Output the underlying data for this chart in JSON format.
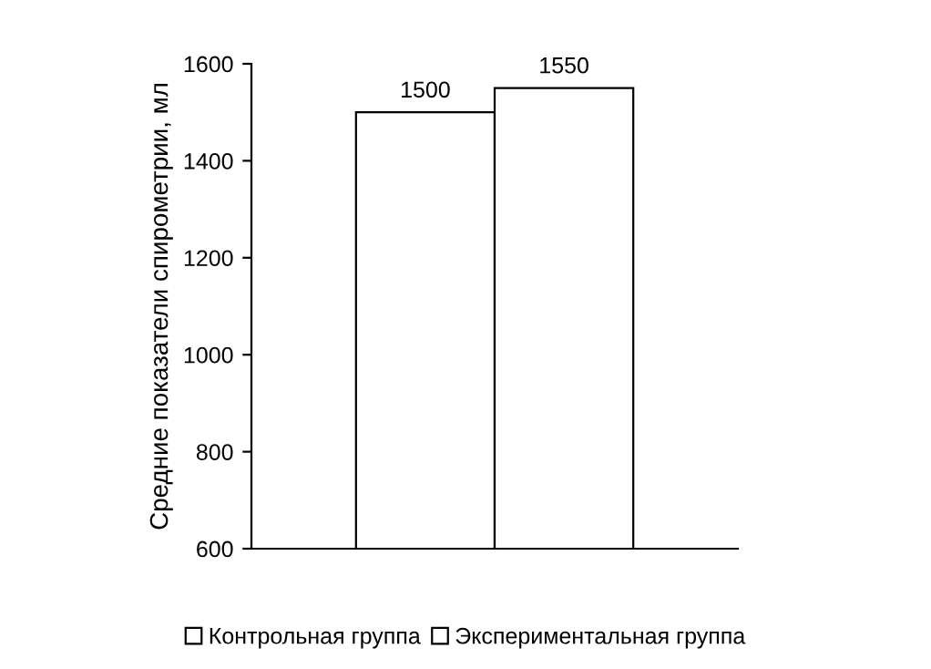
{
  "chart_data": {
    "type": "bar",
    "ylabel": "Средние показатели спирометрии, мл",
    "categories": [
      null
    ],
    "series": [
      {
        "name": "Контрольная группа",
        "color": "#ffffff",
        "values": [
          1500
        ]
      },
      {
        "name": "Экспериментальная группа",
        "color": "#ffffff",
        "values": [
          1550
        ]
      }
    ],
    "ylim": [
      600,
      1600
    ],
    "yticks": [
      600,
      800,
      1000,
      1200,
      1400,
      1600
    ],
    "data_labels": true,
    "legend": "bottom",
    "grid": false
  }
}
